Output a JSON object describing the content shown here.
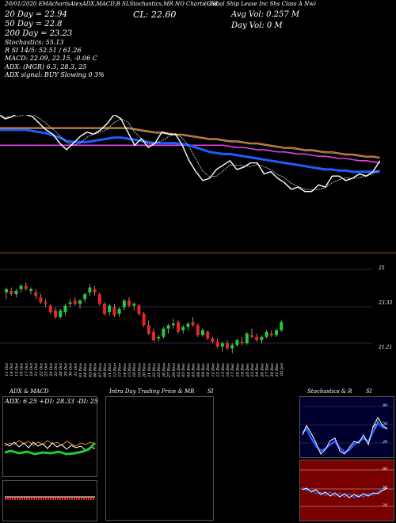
{
  "header": {
    "top_strip": "20/01/2020 EMAchartsAlexADX,MACD,B      SLStochastics,MR      NO Charts GSL",
    "company": "(Global Ship Lease Inc Shs Class A Nw)",
    "ma20": "20 Day = 22.94",
    "close": "CL: 22.60",
    "avg_vol": "Avg Vol: 0.257 M",
    "ma50": "50 Day = 22.8",
    "day_vol": "Day Vol: 0  M",
    "ma200": "200 Day = 23.23",
    "stoch": "Stochastics: 55.13",
    "si": "R                  SI 14/5: 52.51 / 61.26",
    "macd": "MACD: 22.09, 22.15, -0.06  C",
    "adx_line": "ADX:                 (MGR) 6.3, 28.3,  25",
    "signal_line": "ADX  signal:                       BUY Slowing 0 3%"
  },
  "lower": {
    "adx_title": "ADX  & MACD",
    "intra_title": "Intra  Day Trading Price  & MR",
    "si_title": "SI",
    "stoch_title": "Stochastics & R",
    "si_title2": "SI",
    "adx_values": "ADX: 6.25  +DI: 28.33 -DI: 25",
    "stoch_last": "55.13"
  },
  "right_axis": [
    "25",
    "23.33",
    "21.21"
  ],
  "stoch_axis": [
    "80",
    "50",
    "20"
  ],
  "rsi_axis": [
    "80",
    "50",
    "20"
  ],
  "colors": {
    "ema_orange": "#e8821e",
    "ema_blue": "#1f5cff",
    "ema_magenta": "#e23fe6",
    "up": "#22cc33",
    "down": "#ee2222",
    "rsi_bg": "#7a0000",
    "panel_border": "#555555"
  },
  "chart_data": {
    "type": "candlestick",
    "x": [
      "11 Oct",
      "14 Oct",
      "15 Oct",
      "16 Oct",
      "17 Oct",
      "18 Oct",
      "21 Oct",
      "22 Oct",
      "23 Oct",
      "24 Oct",
      "25 Oct",
      "28 Oct",
      "29 Oct",
      "30 Oct",
      "31 Oct",
      "01 Nov",
      "04 Nov",
      "05 Nov",
      "06 Nov",
      "07 Nov",
      "08 Nov",
      "11 Nov",
      "12 Nov",
      "13 Nov",
      "14 Nov",
      "15 Nov",
      "18 Nov",
      "19 Nov",
      "20 Nov",
      "21 Nov",
      "22 Nov",
      "25 Nov",
      "26 Nov",
      "27 Nov",
      "29 Nov",
      "02 Dec",
      "03 Dec",
      "04 Dec",
      "05 Dec",
      "06 Dec",
      "09 Dec",
      "10 Dec",
      "11 Dec",
      "12 Dec",
      "13 Dec",
      "16 Dec",
      "17 Dec",
      "18 Dec",
      "19 Dec",
      "20 Dec",
      "23 Dec",
      "24 Dec",
      "26 Dec",
      "27 Dec",
      "30 Dec",
      "31 Dec",
      "02 Jan"
    ],
    "candles": [
      {
        "o": 24.6,
        "h": 24.9,
        "l": 24.2,
        "c": 24.8
      },
      {
        "o": 24.7,
        "h": 24.9,
        "l": 24.4,
        "c": 24.5
      },
      {
        "o": 24.5,
        "h": 24.8,
        "l": 24.3,
        "c": 24.7
      },
      {
        "o": 24.8,
        "h": 25.1,
        "l": 24.6,
        "c": 25.0
      },
      {
        "o": 25.0,
        "h": 25.2,
        "l": 24.7,
        "c": 24.8
      },
      {
        "o": 24.7,
        "h": 24.9,
        "l": 24.5,
        "c": 24.8
      },
      {
        "o": 24.6,
        "h": 24.8,
        "l": 24.2,
        "c": 24.4
      },
      {
        "o": 24.3,
        "h": 24.5,
        "l": 23.9,
        "c": 24.0
      },
      {
        "o": 24.0,
        "h": 24.2,
        "l": 23.7,
        "c": 23.9
      },
      {
        "o": 23.8,
        "h": 23.9,
        "l": 23.3,
        "c": 23.4
      },
      {
        "o": 23.5,
        "h": 23.7,
        "l": 23.0,
        "c": 23.1
      },
      {
        "o": 23.1,
        "h": 23.6,
        "l": 23.0,
        "c": 23.5
      },
      {
        "o": 23.4,
        "h": 23.9,
        "l": 23.2,
        "c": 23.8
      },
      {
        "o": 23.9,
        "h": 24.2,
        "l": 23.7,
        "c": 24.0
      },
      {
        "o": 24.1,
        "h": 24.3,
        "l": 23.8,
        "c": 23.9
      },
      {
        "o": 23.9,
        "h": 24.2,
        "l": 23.6,
        "c": 24.1
      },
      {
        "o": 24.2,
        "h": 24.6,
        "l": 24.0,
        "c": 24.5
      },
      {
        "o": 24.6,
        "h": 25.1,
        "l": 24.4,
        "c": 24.9
      },
      {
        "o": 24.8,
        "h": 25.0,
        "l": 24.4,
        "c": 24.6
      },
      {
        "o": 24.5,
        "h": 24.6,
        "l": 23.8,
        "c": 23.9
      },
      {
        "o": 23.9,
        "h": 24.0,
        "l": 23.2,
        "c": 23.3
      },
      {
        "o": 23.4,
        "h": 23.9,
        "l": 23.2,
        "c": 23.8
      },
      {
        "o": 23.7,
        "h": 23.9,
        "l": 23.1,
        "c": 23.2
      },
      {
        "o": 23.3,
        "h": 23.7,
        "l": 23.1,
        "c": 23.6
      },
      {
        "o": 23.7,
        "h": 24.2,
        "l": 23.5,
        "c": 24.1
      },
      {
        "o": 24.1,
        "h": 24.3,
        "l": 23.7,
        "c": 23.8
      },
      {
        "o": 23.8,
        "h": 24.0,
        "l": 23.5,
        "c": 23.9
      },
      {
        "o": 23.8,
        "h": 23.9,
        "l": 23.2,
        "c": 23.3
      },
      {
        "o": 23.3,
        "h": 23.4,
        "l": 22.5,
        "c": 22.6
      },
      {
        "o": 22.6,
        "h": 22.9,
        "l": 22.0,
        "c": 22.1
      },
      {
        "o": 22.2,
        "h": 22.4,
        "l": 21.6,
        "c": 21.7
      },
      {
        "o": 21.8,
        "h": 22.0,
        "l": 21.6,
        "c": 21.9
      },
      {
        "o": 21.9,
        "h": 22.5,
        "l": 21.8,
        "c": 22.4
      },
      {
        "o": 22.4,
        "h": 22.7,
        "l": 22.1,
        "c": 22.6
      },
      {
        "o": 22.6,
        "h": 23.0,
        "l": 22.4,
        "c": 22.7
      },
      {
        "o": 22.8,
        "h": 22.9,
        "l": 22.1,
        "c": 22.2
      },
      {
        "o": 22.3,
        "h": 22.6,
        "l": 22.1,
        "c": 22.5
      },
      {
        "o": 22.5,
        "h": 22.8,
        "l": 22.3,
        "c": 22.7
      },
      {
        "o": 22.8,
        "h": 23.1,
        "l": 22.5,
        "c": 22.6
      },
      {
        "o": 22.6,
        "h": 22.7,
        "l": 21.9,
        "c": 22.0
      },
      {
        "o": 22.0,
        "h": 22.4,
        "l": 21.9,
        "c": 22.3
      },
      {
        "o": 22.2,
        "h": 22.3,
        "l": 21.7,
        "c": 21.8
      },
      {
        "o": 21.8,
        "h": 21.9,
        "l": 21.5,
        "c": 21.6
      },
      {
        "o": 21.6,
        "h": 21.8,
        "l": 21.2,
        "c": 21.3
      },
      {
        "o": 21.3,
        "h": 21.6,
        "l": 21.0,
        "c": 21.5
      },
      {
        "o": 21.5,
        "h": 21.7,
        "l": 21.1,
        "c": 21.2
      },
      {
        "o": 21.2,
        "h": 21.5,
        "l": 20.9,
        "c": 21.4
      },
      {
        "o": 21.4,
        "h": 21.8,
        "l": 21.3,
        "c": 21.7
      },
      {
        "o": 21.6,
        "h": 21.9,
        "l": 21.4,
        "c": 21.5
      },
      {
        "o": 21.5,
        "h": 22.2,
        "l": 21.4,
        "c": 22.1
      },
      {
        "o": 22.0,
        "h": 22.4,
        "l": 21.8,
        "c": 21.9
      },
      {
        "o": 21.9,
        "h": 22.1,
        "l": 21.6,
        "c": 21.7
      },
      {
        "o": 21.7,
        "h": 22.0,
        "l": 21.5,
        "c": 21.9
      },
      {
        "o": 21.9,
        "h": 22.3,
        "l": 21.8,
        "c": 22.2
      },
      {
        "o": 22.1,
        "h": 22.3,
        "l": 21.9,
        "c": 22.0
      },
      {
        "o": 22.0,
        "h": 22.4,
        "l": 21.9,
        "c": 22.3
      },
      {
        "o": 22.3,
        "h": 22.9,
        "l": 22.2,
        "c": 22.8
      }
    ],
    "ylim": [
      20.6,
      26.0
    ],
    "ema_upper": {
      "orange": [
        24.2,
        24.2,
        24.2,
        24.2,
        24.2,
        24.2,
        24.2,
        24.2,
        24.2,
        24.2,
        24.2,
        24.2,
        24.2,
        24.2,
        24.2,
        24.2,
        24.2,
        24.2,
        24.2,
        24.2,
        24.15,
        24.1,
        24.05,
        24.0,
        24.0,
        23.95,
        23.9,
        23.9,
        23.85,
        23.8,
        23.75,
        23.7,
        23.7,
        23.65,
        23.6,
        23.6,
        23.55,
        23.5,
        23.5,
        23.45,
        23.4,
        23.35,
        23.3,
        23.3,
        23.25,
        23.2,
        23.2,
        23.15,
        23.1,
        23.1,
        23.05,
        23.0,
        23.0,
        22.95,
        22.9,
        22.9,
        22.85
      ],
      "blue": [
        24.1,
        24.1,
        24.1,
        24.1,
        24.1,
        24.05,
        24.0,
        23.95,
        23.85,
        23.75,
        23.6,
        23.55,
        23.55,
        23.55,
        23.6,
        23.65,
        23.7,
        23.75,
        23.75,
        23.7,
        23.65,
        23.6,
        23.55,
        23.5,
        23.5,
        23.5,
        23.5,
        23.45,
        23.4,
        23.3,
        23.2,
        23.1,
        23.05,
        23.0,
        23.0,
        22.95,
        22.9,
        22.85,
        22.8,
        22.75,
        22.7,
        22.65,
        22.6,
        22.55,
        22.5,
        22.45,
        22.4,
        22.35,
        22.3,
        22.3,
        22.25,
        22.25,
        22.2,
        22.2,
        22.2,
        22.2,
        22.2
      ],
      "magenta": [
        23.4,
        23.4,
        23.4,
        23.4,
        23.4,
        23.4,
        23.4,
        23.4,
        23.4,
        23.4,
        23.4,
        23.4,
        23.4,
        23.4,
        23.4,
        23.4,
        23.4,
        23.4,
        23.4,
        23.4,
        23.4,
        23.4,
        23.4,
        23.4,
        23.4,
        23.4,
        23.4,
        23.4,
        23.4,
        23.4,
        23.4,
        23.4,
        23.4,
        23.4,
        23.35,
        23.3,
        23.3,
        23.25,
        23.2,
        23.2,
        23.15,
        23.1,
        23.1,
        23.05,
        23.0,
        23.0,
        22.95,
        22.9,
        22.9,
        22.85,
        22.8,
        22.8,
        22.75,
        22.7,
        22.7,
        22.65,
        22.6
      ],
      "white": [
        24.8,
        24.6,
        24.7,
        24.9,
        24.8,
        24.7,
        24.4,
        24.1,
        23.9,
        23.5,
        23.2,
        23.5,
        23.8,
        24.0,
        23.9,
        24.1,
        24.4,
        24.8,
        24.6,
        24.0,
        23.4,
        23.7,
        23.3,
        23.5,
        24.0,
        23.9,
        23.9,
        23.4,
        22.7,
        22.2,
        21.8,
        21.9,
        22.3,
        22.5,
        22.7,
        22.3,
        22.4,
        22.6,
        22.6,
        22.1,
        22.2,
        21.9,
        21.7,
        21.4,
        21.5,
        21.3,
        21.3,
        21.6,
        21.5,
        22.0,
        22.0,
        21.8,
        21.9,
        22.1,
        22.0,
        22.2,
        22.7
      ]
    }
  }
}
